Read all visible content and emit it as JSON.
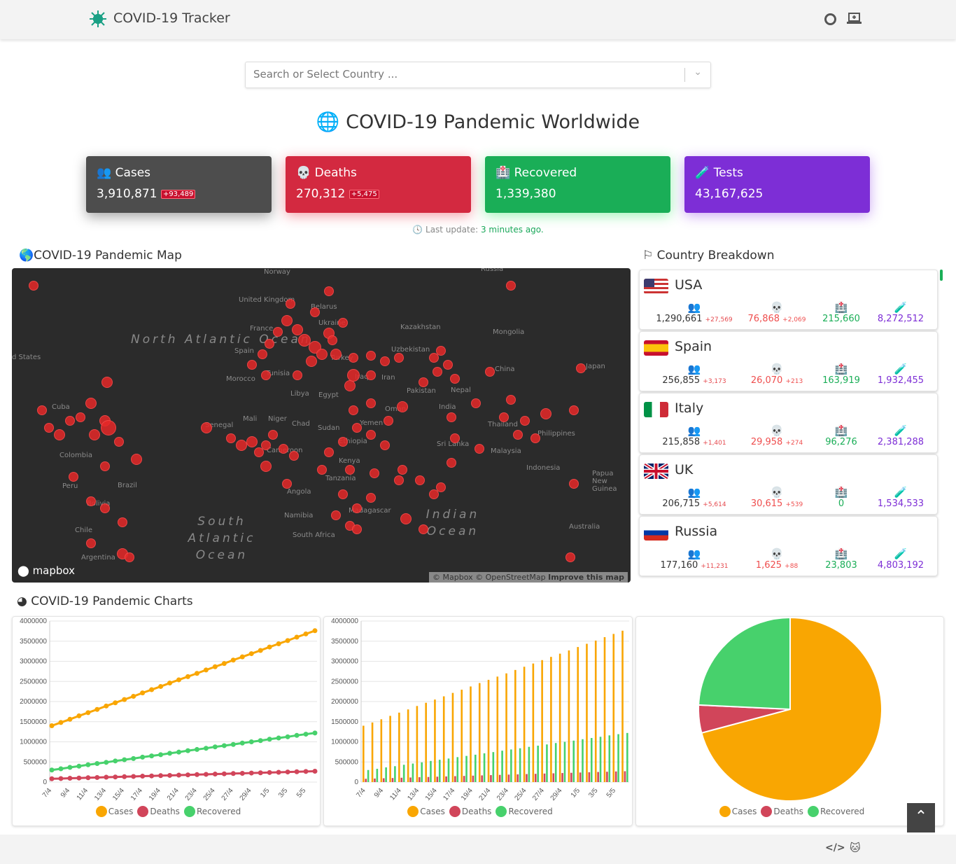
{
  "header": {
    "brand": "COVID-19 Tracker",
    "icons": [
      "virus-icon",
      "github-icon",
      "laptop-icon"
    ]
  },
  "search": {
    "placeholder": "Search or Select Country ..."
  },
  "page_title": "COVID-19 Pandemic Worldwide",
  "stats": [
    {
      "label": "Cases",
      "value": "3,910,871",
      "delta": "+93,489",
      "color": "#4d4d4d"
    },
    {
      "label": "Deaths",
      "value": "270,312",
      "delta": "+5,475",
      "color": "#d32940"
    },
    {
      "label": "Recovered",
      "value": "1,339,380",
      "delta": "",
      "color": "#1aae57"
    },
    {
      "label": "Tests",
      "value": "43,167,625",
      "delta": "",
      "color": "#7d2ed6"
    }
  ],
  "last_update": {
    "label": "Last update:",
    "value": "3 minutes ago."
  },
  "map": {
    "title": "COVID-19 Pandemic Map",
    "logo": "mapbox",
    "attribution": "© Mapbox © OpenStreetMap",
    "improve": "Improve this map",
    "oceans": [
      "North Atlantic Ocean",
      "South Atlantic Ocean",
      "Indian Ocean"
    ],
    "labels": [
      "Norway",
      "Russia",
      "United Kingdom",
      "Belarus",
      "France",
      "Ukraine",
      "Kazakhstan",
      "Mongolia",
      "Spain",
      "Uzbekistan",
      "Turkey",
      "Morocco",
      "Tunisia",
      "Iraq",
      "Iran",
      "China",
      "Japan",
      "Libya",
      "Egypt",
      "Pakistan",
      "Nepal",
      "Oman",
      "India",
      "Mali",
      "Niger",
      "Chad",
      "Sudan",
      "Yemen",
      "Senegal",
      "Ethiopia",
      "Thailand",
      "Philippines",
      "Cameroon",
      "Sri Lanka",
      "Kenya",
      "Malaysia",
      "Indonesia",
      "Tanzania",
      "Angola",
      "Madagascar",
      "Namibia",
      "South Africa",
      "Australia",
      "Papua New Guinea",
      "Cuba",
      "Colombia",
      "Peru",
      "Brazil",
      "Bolivia",
      "Chile",
      "Argentina",
      "d States"
    ]
  },
  "breakdown": {
    "title": "Country Breakdown",
    "countries": [
      {
        "name": "USA",
        "cases": "1,290,661",
        "cases_delta": "+27,569",
        "deaths": "76,868",
        "deaths_delta": "+2,069",
        "recovered": "215,660",
        "tests": "8,272,512"
      },
      {
        "name": "Spain",
        "cases": "256,855",
        "cases_delta": "+3,173",
        "deaths": "26,070",
        "deaths_delta": "+213",
        "recovered": "163,919",
        "tests": "1,932,455"
      },
      {
        "name": "Italy",
        "cases": "215,858",
        "cases_delta": "+1,401",
        "deaths": "29,958",
        "deaths_delta": "+274",
        "recovered": "96,276",
        "tests": "2,381,288"
      },
      {
        "name": "UK",
        "cases": "206,715",
        "cases_delta": "+5,614",
        "deaths": "30,615",
        "deaths_delta": "+539",
        "recovered": "0",
        "tests": "1,534,533"
      },
      {
        "name": "Russia",
        "cases": "177,160",
        "cases_delta": "+11,231",
        "deaths": "1,625",
        "deaths_delta": "+88",
        "recovered": "23,803",
        "tests": "4,803,192"
      }
    ]
  },
  "charts": {
    "title": "COVID-19 Pandemic Charts"
  },
  "chart_data": [
    {
      "type": "line",
      "ylim": [
        0,
        4000000
      ],
      "yticks": [
        "0",
        "500000",
        "1000000",
        "1500000",
        "2000000",
        "2500000",
        "3000000",
        "3500000",
        "4000000"
      ],
      "categories": [
        "7/4",
        "8/4",
        "9/4",
        "10/4",
        "11/4",
        "12/4",
        "13/4",
        "14/4",
        "15/4",
        "16/4",
        "17/4",
        "18/4",
        "19/4",
        "20/4",
        "21/4",
        "22/4",
        "23/4",
        "24/4",
        "25/4",
        "26/4",
        "27/4",
        "28/4",
        "29/4",
        "30/4",
        "1/5",
        "2/5",
        "3/5",
        "4/5",
        "5/5",
        "6/5"
      ],
      "legend": "bottom",
      "series": [
        {
          "name": "Cases",
          "color": "#f9a602",
          "values": [
            1400000,
            1480000,
            1560000,
            1645000,
            1725000,
            1805000,
            1890000,
            1970000,
            2050000,
            2130000,
            2215000,
            2295000,
            2375000,
            2460000,
            2540000,
            2620000,
            2700000,
            2785000,
            2865000,
            2945000,
            3030000,
            3110000,
            3190000,
            3270000,
            3355000,
            3435000,
            3515000,
            3600000,
            3680000,
            3760000
          ]
        },
        {
          "name": "Deaths",
          "color": "#d1455a",
          "values": [
            82000,
            88000,
            95000,
            101000,
            108000,
            114000,
            121000,
            127000,
            134000,
            140000,
            147000,
            153000,
            160000,
            166000,
            173000,
            179000,
            186000,
            192000,
            199000,
            205000,
            212000,
            218000,
            225000,
            231000,
            238000,
            244000,
            251000,
            257000,
            264000,
            270000
          ]
        },
        {
          "name": "Recovered",
          "color": "#47d16c",
          "values": [
            300000,
            330000,
            365000,
            395000,
            430000,
            460000,
            490000,
            525000,
            555000,
            585000,
            620000,
            650000,
            680000,
            715000,
            745000,
            780000,
            810000,
            840000,
            875000,
            905000,
            935000,
            970000,
            1000000,
            1030000,
            1065000,
            1095000,
            1125000,
            1160000,
            1190000,
            1220000
          ]
        }
      ]
    },
    {
      "type": "bar",
      "same_data_as": "line",
      "legend": "bottom"
    },
    {
      "type": "pie",
      "legend": "bottom",
      "categories": [
        "Cases",
        "Deaths",
        "Recovered"
      ],
      "values": [
        3910871,
        270312,
        1339380
      ],
      "colors": [
        "#f9a602",
        "#d1455a",
        "#47d16c"
      ]
    }
  ]
}
